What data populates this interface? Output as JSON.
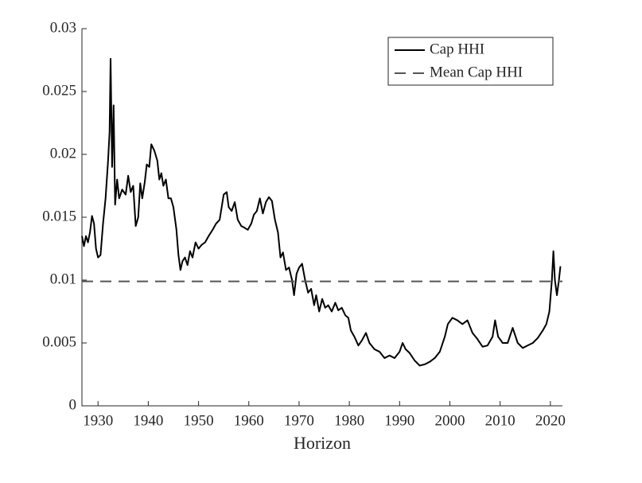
{
  "chart_data": {
    "type": "line",
    "xlabel": "Horizon",
    "xlim": [
      1926.8,
      2022.4
    ],
    "xticks": [
      1930,
      1940,
      1950,
      1960,
      1970,
      1980,
      1990,
      2000,
      2010,
      2020
    ],
    "ylim": [
      0,
      0.03
    ],
    "yticks": [
      0,
      0.005,
      0.01,
      0.015,
      0.02,
      0.025,
      0.03
    ],
    "legend": "upper right",
    "series": [
      {
        "name": "Cap HHI",
        "color": "#000000",
        "style": "solid",
        "x": [
          1926.8,
          1927.2,
          1927.6,
          1928,
          1928.4,
          1928.8,
          1929.2,
          1929.6,
          1930,
          1930.5,
          1931,
          1931.5,
          1932,
          1932.3,
          1932.5,
          1932.8,
          1933.1,
          1933.4,
          1933.8,
          1934.2,
          1934.8,
          1935.5,
          1936,
          1936.5,
          1937,
          1937.5,
          1938,
          1938.4,
          1938.8,
          1939.3,
          1939.7,
          1940.2,
          1940.6,
          1941.2,
          1941.8,
          1942.2,
          1942.6,
          1943,
          1943.5,
          1944,
          1944.5,
          1945,
          1945.6,
          1946,
          1946.4,
          1946.8,
          1947.3,
          1947.8,
          1948.3,
          1948.8,
          1949.4,
          1950,
          1950.6,
          1951.3,
          1952,
          1952.8,
          1953.5,
          1954.2,
          1955,
          1955.6,
          1956,
          1956.6,
          1957.2,
          1957.8,
          1958.5,
          1959,
          1959.8,
          1960.5,
          1961,
          1961.6,
          1962.2,
          1962.8,
          1963.4,
          1964,
          1964.6,
          1965.2,
          1965.8,
          1966.3,
          1966.8,
          1967.4,
          1968,
          1968.6,
          1969,
          1969.5,
          1970,
          1970.6,
          1971.2,
          1971.8,
          1972.4,
          1973,
          1973.4,
          1974,
          1974.6,
          1975.2,
          1975.8,
          1976.5,
          1977.2,
          1977.8,
          1978.5,
          1979.2,
          1979.8,
          1980.3,
          1981,
          1981.8,
          1982.5,
          1983.3,
          1984,
          1985,
          1986,
          1987,
          1988,
          1989,
          1990,
          1990.6,
          1991.2,
          1992,
          1993,
          1994,
          1995,
          1996,
          1997,
          1998,
          1999,
          1999.6,
          2000.5,
          2001.5,
          2002.5,
          2003.5,
          2004.5,
          2005.5,
          2006.5,
          2007.5,
          2008.5,
          2009,
          2009.6,
          2010.5,
          2011.5,
          2012.5,
          2013.5,
          2014.5,
          2015.5,
          2016.5,
          2017.5,
          2018.5,
          2019.2,
          2019.8,
          2020.3,
          2020.6,
          2020.9,
          2021.3,
          2021.7,
          2022
        ],
        "values": [
          0.0135,
          0.0127,
          0.0135,
          0.013,
          0.0138,
          0.0151,
          0.0145,
          0.0125,
          0.0118,
          0.012,
          0.0145,
          0.0165,
          0.0195,
          0.0218,
          0.0276,
          0.019,
          0.0239,
          0.016,
          0.018,
          0.0165,
          0.0172,
          0.0168,
          0.0183,
          0.017,
          0.0175,
          0.0143,
          0.015,
          0.0177,
          0.0165,
          0.0178,
          0.0192,
          0.019,
          0.0208,
          0.0203,
          0.0195,
          0.018,
          0.0185,
          0.0175,
          0.018,
          0.0165,
          0.0165,
          0.0158,
          0.014,
          0.012,
          0.0108,
          0.0115,
          0.0118,
          0.0112,
          0.0123,
          0.0118,
          0.013,
          0.0125,
          0.0128,
          0.013,
          0.0135,
          0.014,
          0.0145,
          0.0148,
          0.0168,
          0.017,
          0.0158,
          0.0155,
          0.0162,
          0.0148,
          0.0143,
          0.0142,
          0.014,
          0.0145,
          0.0152,
          0.0155,
          0.0165,
          0.0153,
          0.0162,
          0.0166,
          0.0163,
          0.0148,
          0.0138,
          0.0118,
          0.0122,
          0.0108,
          0.011,
          0.01,
          0.0088,
          0.0105,
          0.011,
          0.0113,
          0.01,
          0.009,
          0.0093,
          0.008,
          0.0088,
          0.0075,
          0.0085,
          0.0078,
          0.008,
          0.0075,
          0.0082,
          0.0076,
          0.0078,
          0.0072,
          0.007,
          0.006,
          0.0055,
          0.0048,
          0.0052,
          0.0058,
          0.005,
          0.0045,
          0.0043,
          0.0038,
          0.004,
          0.0038,
          0.0043,
          0.005,
          0.0045,
          0.0042,
          0.0036,
          0.0032,
          0.0033,
          0.0035,
          0.0038,
          0.0043,
          0.0055,
          0.0065,
          0.007,
          0.0068,
          0.0065,
          0.0068,
          0.0058,
          0.0053,
          0.0047,
          0.0048,
          0.0055,
          0.0068,
          0.0055,
          0.005,
          0.005,
          0.0062,
          0.005,
          0.0046,
          0.0048,
          0.005,
          0.0054,
          0.006,
          0.0065,
          0.0075,
          0.01,
          0.0123,
          0.01,
          0.0088,
          0.01,
          0.0111
        ]
      },
      {
        "name": "Mean Cap HHI",
        "color": "#555555",
        "style": "dashed",
        "x": [
          1926.8,
          2022.4
        ],
        "values": [
          0.0099,
          0.0099
        ]
      }
    ]
  }
}
